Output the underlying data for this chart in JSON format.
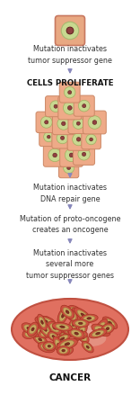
{
  "background_color": "#ffffff",
  "arrow_color": "#8888bb",
  "title": "CANCER",
  "proliferate_label": "CELLS PROLIFERATE",
  "steps": [
    "Mutation inactivates\ntumor suppressor gene",
    "Mutation inactivates\nDNA repair gene",
    "Mutation of proto-oncogene\ncreates an oncogene",
    "Mutation inactivates\nseveral more\ntumor suppressor genes"
  ],
  "single_outer_fc": "#e8a882",
  "single_outer_ec": "#c87860",
  "single_inner_fc": "#c8d890",
  "single_inner_ec": "#a8b870",
  "single_nuc_fc": "#904040",
  "single_nuc_ec": "#602020",
  "cluster_outer_fc": "#eeaa88",
  "cluster_outer_ec": "#cc8866",
  "cluster_inner_fc": "#c8d890",
  "cluster_inner_ec": "#a0b060",
  "cluster_nuc_fc": "#904040",
  "cluster_nuc_ec": "#602020",
  "cancer_bg_fc": "#e07060",
  "cancer_bg_ec": "#c05040",
  "cancer_outer_fc": "#cc5040",
  "cancer_outer_ec": "#aa3828",
  "cancer_inner_fc": "#c8a860",
  "cancer_inner_ec": "#a08040",
  "cancer_nuc_fc": "#803020",
  "cancer_nuc_ec": "#501010",
  "text_color": "#333333",
  "bold_color": "#111111"
}
